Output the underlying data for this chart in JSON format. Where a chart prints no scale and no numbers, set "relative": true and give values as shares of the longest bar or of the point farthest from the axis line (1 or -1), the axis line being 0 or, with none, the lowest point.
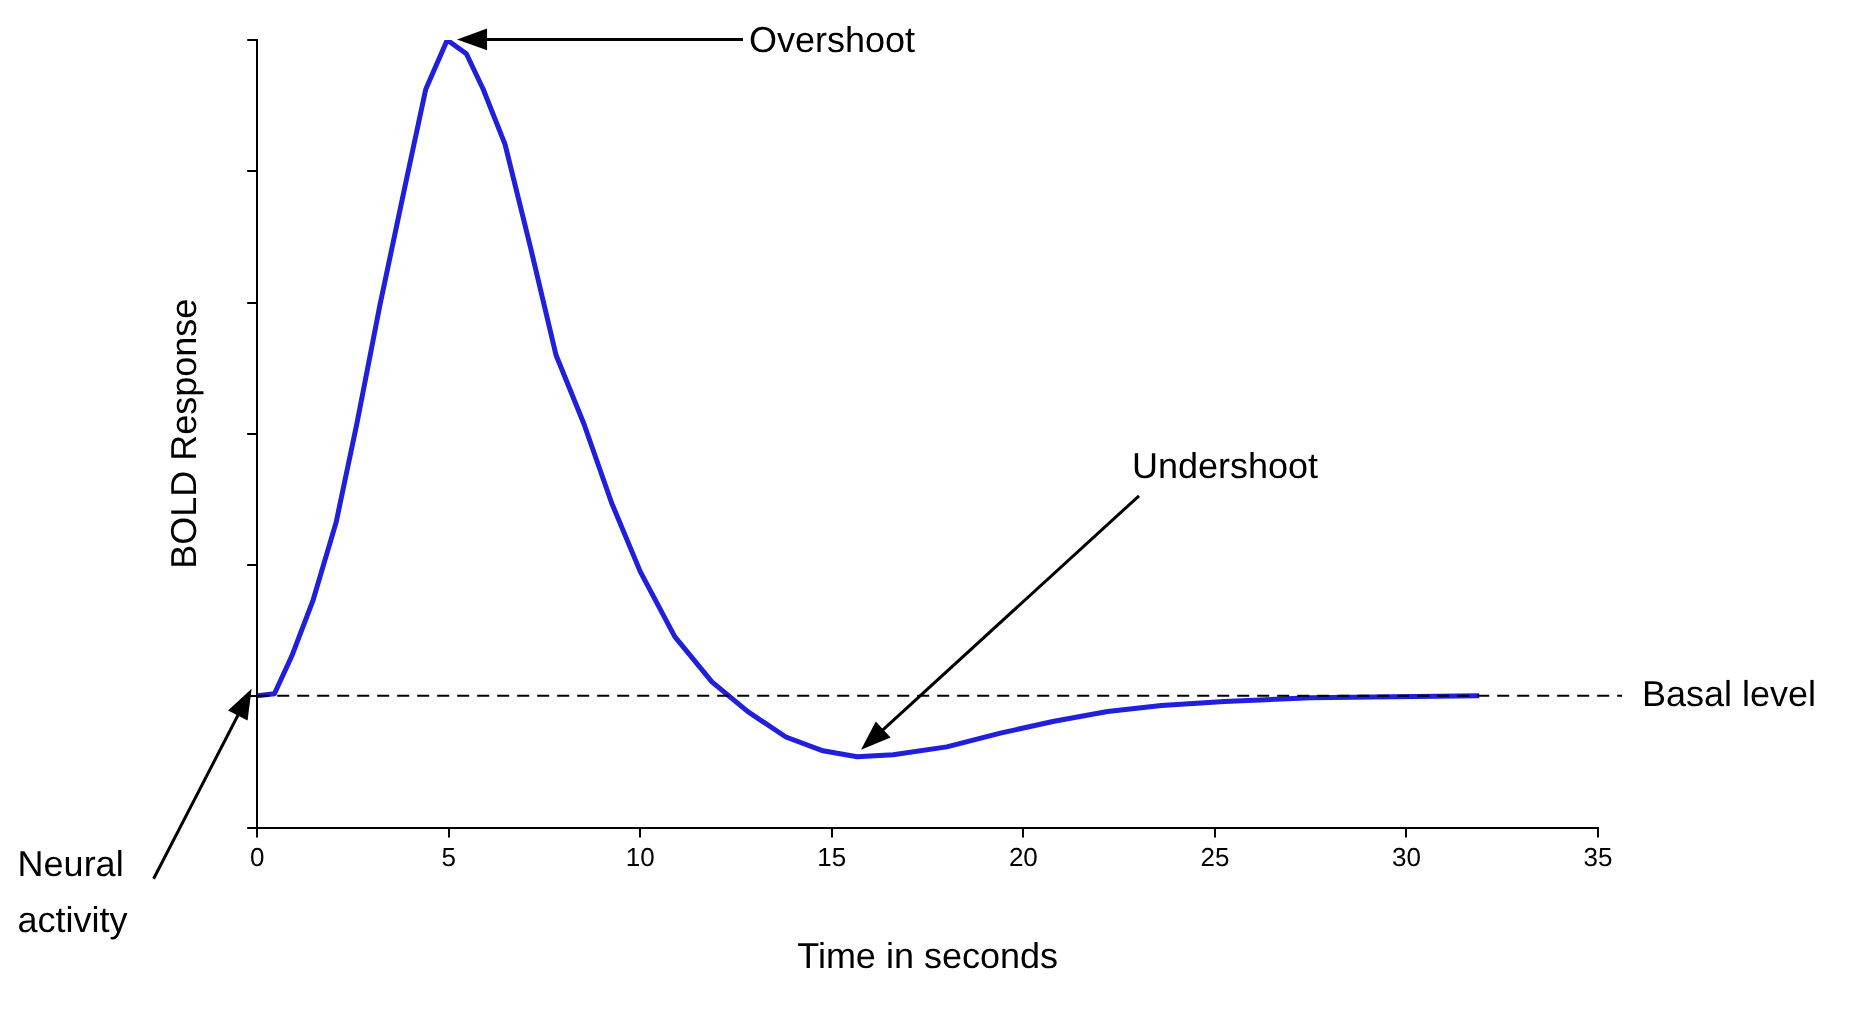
{
  "chart_data": {
    "type": "line",
    "relative": true,
    "xlabel": "Time in seconds",
    "ylabel": "BOLD Response",
    "x": [
      0,
      0.45,
      0.9,
      1.45,
      2.06,
      2.6,
      3.2,
      3.85,
      4.4,
      4.96,
      5.46,
      5.9,
      6.47,
      7.13,
      7.8,
      8.53,
      9.25,
      10,
      10.9,
      11.87,
      12.8,
      13.8,
      14.77,
      15.66,
      16.6,
      18,
      19.4,
      20.8,
      22.2,
      23.6,
      25.25,
      27.5,
      29.7,
      31.9
    ],
    "series": [
      {
        "color": "#1f1fdc",
        "values": [
          0.1675,
          0.17,
          0.2175,
          0.2875,
          0.3875,
          0.5125,
          0.6625,
          0.8125,
          0.9375,
          1,
          0.9825,
          0.9375,
          0.8675,
          0.7375,
          0.6,
          0.5125,
          0.4125,
          0.325,
          0.2425,
          0.185,
          0.1475,
          0.115,
          0.0975,
          0.09,
          0.0925,
          0.1025,
          0.12,
          0.135,
          0.1475,
          0.155,
          0.16,
          0.165,
          0.166,
          0.1675
        ]
      }
    ],
    "xlim": [
      0,
      35
    ],
    "xticks": [
      0,
      5,
      10,
      15,
      20,
      25,
      30,
      35
    ],
    "tick_labels": "x",
    "grid": false,
    "legend": false,
    "marker": "none",
    "line_style": "solid",
    "ref_lines": [
      {
        "axis": "y",
        "value": 0.1675,
        "label": "Basal level",
        "color": "#000000",
        "line_style": "dashed"
      }
    ],
    "annotations": [
      "Overshoot",
      "Undershoot",
      "Neural activity"
    ]
  }
}
